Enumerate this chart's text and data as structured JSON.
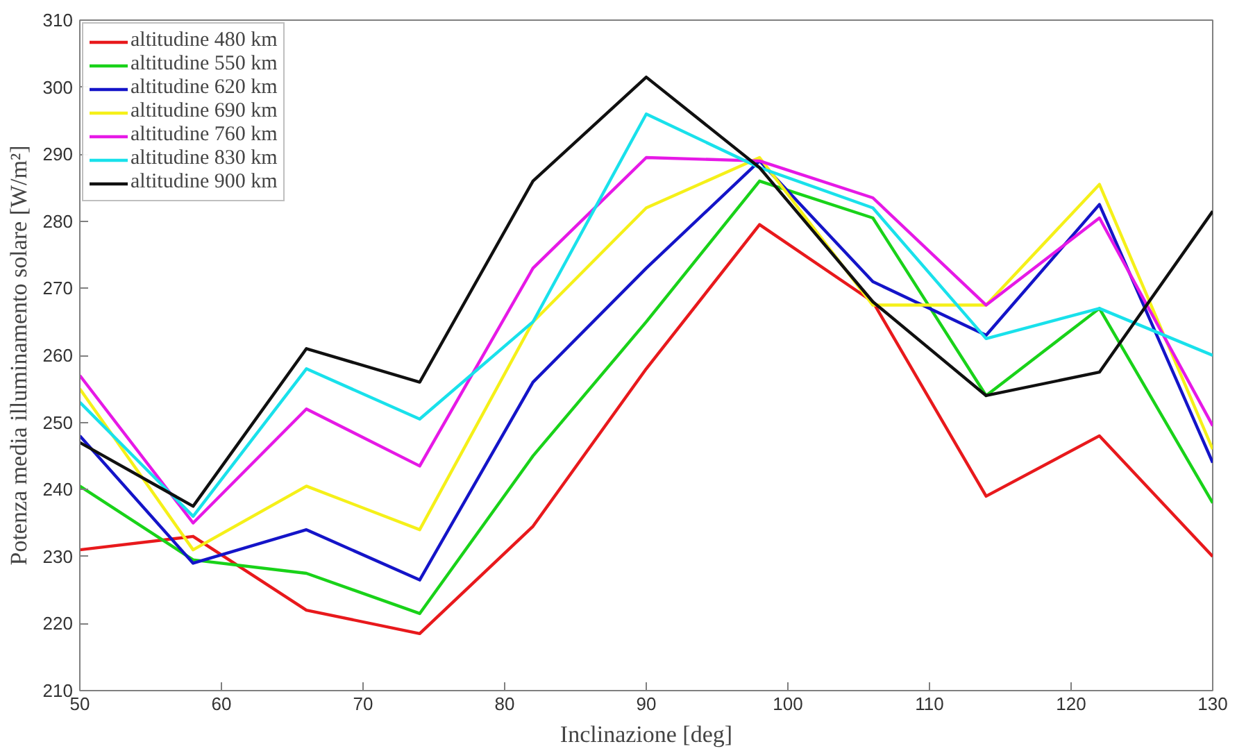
{
  "chart_data": {
    "type": "line",
    "xlabel": "Inclinazione [deg]",
    "ylabel": "Potenza media illuminamento solare [W/m²]",
    "x": [
      50,
      58,
      66,
      74,
      82,
      90,
      98,
      106,
      114,
      122,
      130
    ],
    "xlim": [
      50,
      130
    ],
    "xticks": [
      50,
      60,
      70,
      80,
      90,
      100,
      110,
      120,
      130
    ],
    "ylim": [
      210,
      310
    ],
    "yticks": [
      210,
      220,
      230,
      240,
      250,
      260,
      270,
      280,
      290,
      300,
      310
    ],
    "grid": false,
    "legend": "top left",
    "marker": "none",
    "line_style": "solid",
    "series": [
      {
        "name": "altitudine 480 km",
        "color": "#e8191c",
        "values": [
          231,
          233,
          222,
          218.5,
          234.5,
          258,
          279.5,
          268,
          239,
          248,
          230
        ]
      },
      {
        "name": "altitudine 550 km",
        "color": "#19d219",
        "values": [
          240.5,
          229.5,
          227.5,
          221.5,
          245,
          265,
          286,
          280.5,
          254,
          267,
          238
        ]
      },
      {
        "name": "altitudine 620 km",
        "color": "#1414c8",
        "values": [
          248,
          229,
          234,
          226.5,
          256,
          273,
          289,
          271,
          263,
          282.5,
          244
        ]
      },
      {
        "name": "altitudine 690 km",
        "color": "#f5f019",
        "values": [
          255,
          231,
          240.5,
          234,
          265,
          282,
          289.5,
          267.5,
          267.5,
          285.5,
          246
        ]
      },
      {
        "name": "altitudine 760 km",
        "color": "#e619e6",
        "values": [
          257,
          235,
          252,
          243.5,
          273,
          289.5,
          289,
          283.5,
          267.5,
          280.5,
          249.5
        ]
      },
      {
        "name": "altitudine 830 km",
        "color": "#19e1eb",
        "values": [
          253,
          236,
          258,
          250.5,
          265,
          296,
          288,
          282,
          262.5,
          267,
          260
        ]
      },
      {
        "name": "altitudine 900 km",
        "color": "#101010",
        "values": [
          247,
          237.5,
          261,
          256,
          286,
          301.5,
          288,
          268,
          254,
          257.5,
          281.5
        ]
      }
    ]
  }
}
